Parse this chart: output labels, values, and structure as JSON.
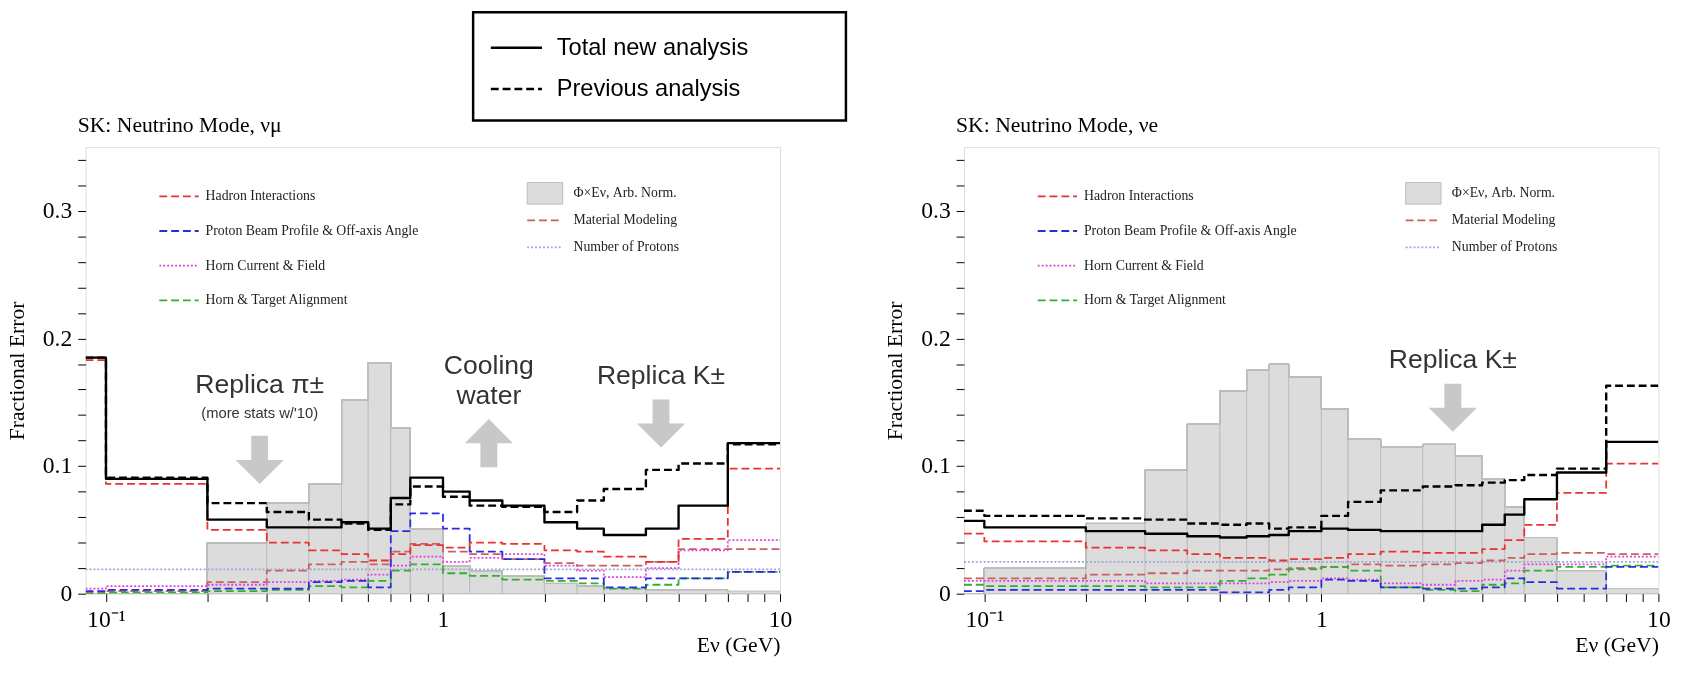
{
  "chart_data": [
    {
      "type": "step",
      "title": "SK: Neutrino Mode, νμ",
      "xlabel": "Eν (GeV)",
      "ylabel": "Fractional Error",
      "log": "x",
      "legend": "top",
      "xlim": [
        0.087,
        10
      ],
      "ylim": [
        0,
        0.35
      ],
      "xticks": [
        {
          "value": 0.1,
          "label": "10⁻¹"
        },
        {
          "value": 0.2,
          "label": null
        },
        {
          "value": 0.3,
          "label": null
        },
        {
          "value": 0.4,
          "label": null
        },
        {
          "value": 0.5,
          "label": null
        },
        {
          "value": 0.6,
          "label": null
        },
        {
          "value": 0.7,
          "label": null
        },
        {
          "value": 0.8,
          "label": null
        },
        {
          "value": 0.9,
          "label": null
        },
        1,
        {
          "value": 2,
          "label": null
        },
        {
          "value": 3,
          "label": null
        },
        {
          "value": 4,
          "label": null
        },
        {
          "value": 5,
          "label": null
        },
        {
          "value": 6,
          "label": null
        },
        {
          "value": 7,
          "label": null
        },
        {
          "value": 8,
          "label": null
        },
        {
          "value": 9,
          "label": null
        },
        10
      ],
      "yticks": [
        0,
        {
          "value": 0.02,
          "label": null
        },
        {
          "value": 0.04,
          "label": null
        },
        {
          "value": 0.06,
          "label": null
        },
        {
          "value": 0.08,
          "label": null
        },
        0.1,
        {
          "value": 0.12,
          "label": null
        },
        {
          "value": 0.14,
          "label": null
        },
        {
          "value": 0.16,
          "label": null
        },
        {
          "value": 0.18,
          "label": null
        },
        0.2,
        {
          "value": 0.22,
          "label": null
        },
        {
          "value": 0.24,
          "label": null
        },
        {
          "value": 0.26,
          "label": null
        },
        {
          "value": 0.28,
          "label": null
        },
        0.3,
        {
          "value": 0.32,
          "label": null
        },
        {
          "value": 0.34,
          "label": null
        }
      ],
      "x": [
        0.087,
        0.1,
        0.2,
        0.3,
        0.4,
        0.5,
        0.6,
        0.7,
        0.8,
        1.0,
        1.2,
        1.5,
        2.0,
        2.5,
        3.0,
        4.0,
        5.0,
        7.0,
        10
      ],
      "annotations": [
        "Replica π±",
        "(more stats w/'10)",
        "Cooling",
        "water",
        "Replica K±"
      ],
      "series": [
        {
          "name": "Total new analysis",
          "color": "#000000",
          "line_style": "solid",
          "values": [
            0.185,
            0.185,
            0.09,
            0.058,
            0.052,
            0.052,
            0.056,
            0.051,
            0.075,
            0.091,
            0.08,
            0.073,
            0.069,
            0.056,
            0.051,
            0.046,
            0.051,
            0.069,
            0.118
          ]
        },
        {
          "name": "Previous analysis",
          "color": "#000000",
          "line_style": "dashed",
          "values": [
            0.185,
            0.185,
            0.091,
            0.071,
            0.064,
            0.058,
            0.055,
            0.05,
            0.07,
            0.084,
            0.076,
            0.069,
            0.068,
            0.064,
            0.073,
            0.082,
            0.097,
            0.102,
            0.117
          ]
        },
        {
          "name": "Hadron Interactions",
          "color": "#e8322f",
          "line_style": "dashed",
          "values": [
            0.183,
            0.183,
            0.086,
            0.05,
            0.04,
            0.034,
            0.031,
            0.026,
            0.031,
            0.038,
            0.036,
            0.04,
            0.039,
            0.034,
            0.033,
            0.029,
            0.025,
            0.043,
            0.098
          ]
        },
        {
          "name": "Proton Beam Profile & Off-axis Angle",
          "color": "#2a2ae0",
          "line_style": "dashed",
          "values": [
            0.002,
            0.002,
            0.003,
            0.004,
            0.004,
            0.009,
            0.01,
            0.005,
            0.049,
            0.063,
            0.051,
            0.033,
            0.027,
            0.012,
            0.012,
            0.005,
            0.012,
            0.012,
            0.017
          ]
        },
        {
          "name": "Horn Current & Field",
          "color": "#e040e0",
          "line_style": "dotted",
          "values": [
            0.004,
            0.004,
            0.006,
            0.007,
            0.009,
            0.01,
            0.011,
            0.015,
            0.022,
            0.029,
            0.025,
            0.028,
            0.031,
            0.022,
            0.018,
            0.013,
            0.02,
            0.034,
            0.042
          ]
        },
        {
          "name": "Horn & Target Alignment",
          "color": "#30b030",
          "line_style": "dashed",
          "values": [
            0.001,
            0.001,
            0.001,
            0.002,
            0.003,
            0.006,
            0.005,
            0.01,
            0.018,
            0.023,
            0.016,
            0.014,
            0.011,
            0.01,
            0.008,
            0.004,
            0.007,
            0.012,
            0.017
          ]
        },
        {
          "name": "Φ×Eν, Arb. Norm.",
          "type": "area",
          "color": "#dcdcdc",
          "values": [
            0,
            0,
            0,
            0.04,
            0.071,
            0.086,
            0.152,
            0.181,
            0.13,
            0.051,
            0.022,
            0.018,
            0.014,
            0.008,
            0.006,
            0.004,
            0.003,
            0.003,
            0.002
          ]
        },
        {
          "name": "Material Modeling",
          "color": "#c86060",
          "line_style": "dashed",
          "values": [
            0.0,
            0.0,
            0.002,
            0.009,
            0.018,
            0.023,
            0.025,
            0.023,
            0.033,
            0.039,
            0.033,
            0.031,
            0.027,
            0.024,
            0.022,
            0.022,
            0.025,
            0.035,
            0.035
          ]
        },
        {
          "name": "Number of Protons",
          "color": "#a0a8d0",
          "line_style": "dotted",
          "values": [
            0.019,
            0.019,
            0.019,
            0.019,
            0.019,
            0.019,
            0.019,
            0.019,
            0.019,
            0.019,
            0.019,
            0.019,
            0.019,
            0.019,
            0.019,
            0.019,
            0.019,
            0.019,
            0.019
          ]
        }
      ]
    },
    {
      "type": "step",
      "title": "SK: Neutrino Mode, νe",
      "xlabel": "Eν (GeV)",
      "ylabel": "Fractional Error",
      "log": "x",
      "legend": "top",
      "xlim": [
        0.087,
        10
      ],
      "ylim": [
        0,
        0.35
      ],
      "xticks": [
        {
          "value": 0.1,
          "label": "10⁻¹"
        },
        {
          "value": 0.2,
          "label": null
        },
        {
          "value": 0.3,
          "label": null
        },
        {
          "value": 0.4,
          "label": null
        },
        {
          "value": 0.5,
          "label": null
        },
        {
          "value": 0.6,
          "label": null
        },
        {
          "value": 0.7,
          "label": null
        },
        {
          "value": 0.8,
          "label": null
        },
        {
          "value": 0.9,
          "label": null
        },
        1,
        {
          "value": 2,
          "label": null
        },
        {
          "value": 3,
          "label": null
        },
        {
          "value": 4,
          "label": null
        },
        {
          "value": 5,
          "label": null
        },
        {
          "value": 6,
          "label": null
        },
        {
          "value": 7,
          "label": null
        },
        {
          "value": 8,
          "label": null
        },
        {
          "value": 9,
          "label": null
        },
        10
      ],
      "yticks": [
        0,
        {
          "value": 0.02,
          "label": null
        },
        {
          "value": 0.04,
          "label": null
        },
        {
          "value": 0.06,
          "label": null
        },
        {
          "value": 0.08,
          "label": null
        },
        0.1,
        {
          "value": 0.12,
          "label": null
        },
        {
          "value": 0.14,
          "label": null
        },
        {
          "value": 0.16,
          "label": null
        },
        {
          "value": 0.18,
          "label": null
        },
        0.2,
        {
          "value": 0.22,
          "label": null
        },
        {
          "value": 0.24,
          "label": null
        },
        {
          "value": 0.26,
          "label": null
        },
        {
          "value": 0.28,
          "label": null
        },
        0.3,
        {
          "value": 0.32,
          "label": null
        },
        {
          "value": 0.34,
          "label": null
        }
      ],
      "x": [
        0.087,
        0.1,
        0.2,
        0.3,
        0.4,
        0.5,
        0.6,
        0.7,
        0.8,
        1.0,
        1.2,
        1.5,
        2.0,
        2.5,
        3.0,
        3.5,
        4.0,
        5.0,
        7.0,
        10
      ],
      "annotations": [
        "Replica K±"
      ],
      "series": [
        {
          "color": "#000000",
          "line_style": "solid",
          "values": [
            0.057,
            0.057,
            0.052,
            0.049,
            0.047,
            0.045,
            0.044,
            0.045,
            0.046,
            0.049,
            0.051,
            0.05,
            0.049,
            0.049,
            0.049,
            0.054,
            0.062,
            0.074,
            0.095,
            0.119
          ]
        },
        {
          "color": "#000000",
          "line_style": "dashed",
          "values": [
            0.065,
            0.065,
            0.061,
            0.059,
            0.058,
            0.055,
            0.054,
            0.055,
            0.051,
            0.052,
            0.061,
            0.072,
            0.081,
            0.084,
            0.085,
            0.087,
            0.089,
            0.093,
            0.098,
            0.163
          ]
        },
        {
          "name": "Hadron Interactions",
          "color": "#e8322f",
          "line_style": "dashed",
          "values": [
            0.047,
            0.047,
            0.041,
            0.036,
            0.034,
            0.031,
            0.028,
            0.028,
            0.026,
            0.027,
            0.028,
            0.031,
            0.033,
            0.032,
            0.032,
            0.035,
            0.042,
            0.054,
            0.079,
            0.102
          ]
        },
        {
          "name": "Proton Beam Profile & Off-axis Angle",
          "color": "#2a2ae0",
          "line_style": "dashed",
          "values": [
            0.002,
            0.002,
            0.003,
            0.003,
            0.003,
            0.003,
            0.001,
            0.001,
            0.003,
            0.005,
            0.011,
            0.01,
            0.005,
            0.004,
            0.004,
            0.005,
            0.012,
            0.009,
            0.004,
            0.021
          ]
        },
        {
          "name": "Horn Current & Field",
          "color": "#e040e0",
          "line_style": "dotted",
          "values": [
            0.01,
            0.01,
            0.01,
            0.01,
            0.008,
            0.008,
            0.008,
            0.008,
            0.009,
            0.01,
            0.012,
            0.011,
            0.008,
            0.007,
            0.01,
            0.011,
            0.018,
            0.023,
            0.023,
            0.029
          ]
        },
        {
          "name": "Horn & Target Alignment",
          "color": "#30b030",
          "line_style": "dashed",
          "values": [
            0.007,
            0.007,
            0.006,
            0.006,
            0.005,
            0.005,
            0.01,
            0.012,
            0.015,
            0.019,
            0.021,
            0.018,
            0.005,
            0.003,
            0.002,
            0.007,
            0.008,
            0.018,
            0.021,
            0.022
          ]
        },
        {
          "name": "Φ×Eν, Arb. Norm.",
          "type": "area",
          "color": "#dcdcdc",
          "values": [
            0,
            0,
            0.02,
            0.055,
            0.097,
            0.133,
            0.159,
            0.175,
            0.18,
            0.17,
            0.145,
            0.121,
            0.115,
            0.117,
            0.108,
            0.09,
            0.068,
            0.044,
            0.018,
            0.004
          ]
        },
        {
          "name": "Material Modeling",
          "color": "#c86060",
          "line_style": "dashed",
          "values": [
            0.012,
            0.012,
            0.012,
            0.015,
            0.016,
            0.018,
            0.018,
            0.018,
            0.019,
            0.02,
            0.021,
            0.023,
            0.022,
            0.023,
            0.024,
            0.026,
            0.028,
            0.031,
            0.032,
            0.031
          ]
        },
        {
          "name": "Number of Protons",
          "color": "#a0a8d0",
          "line_style": "dotted",
          "values": [
            0.025,
            0.025,
            0.025,
            0.025,
            0.025,
            0.025,
            0.025,
            0.025,
            0.025,
            0.025,
            0.025,
            0.025,
            0.025,
            0.025,
            0.025,
            0.025,
            0.025,
            0.025,
            0.025,
            0.025
          ]
        }
      ]
    }
  ]
}
